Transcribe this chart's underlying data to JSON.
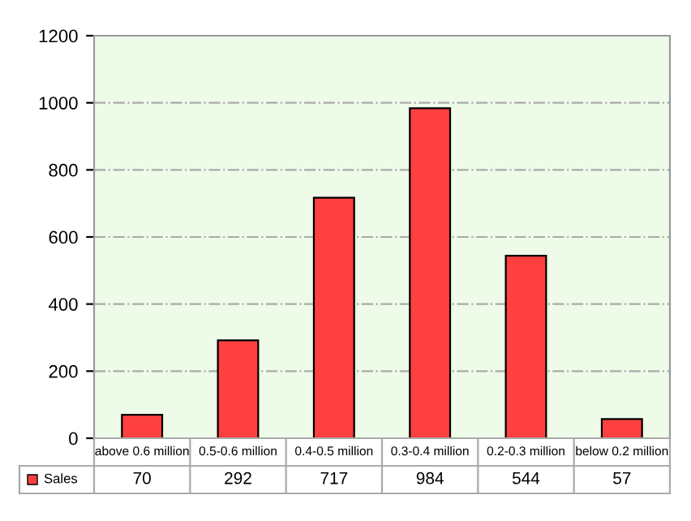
{
  "chart_data": {
    "type": "bar",
    "categories": [
      "above 0.6 million",
      "0.5-0.6 million",
      "0.4-0.5 million",
      "0.3-0.4 million",
      "0.2-0.3 million",
      "below 0.2 million"
    ],
    "series": [
      {
        "name": "Sales",
        "color": "#ff4040",
        "values": [
          70,
          292,
          717,
          984,
          544,
          57
        ]
      }
    ],
    "ylim": [
      0,
      1200
    ],
    "yticks": [
      0,
      200,
      400,
      600,
      800,
      1000,
      1200
    ],
    "grid": "y",
    "legend": "bottom",
    "data_labels": true
  }
}
